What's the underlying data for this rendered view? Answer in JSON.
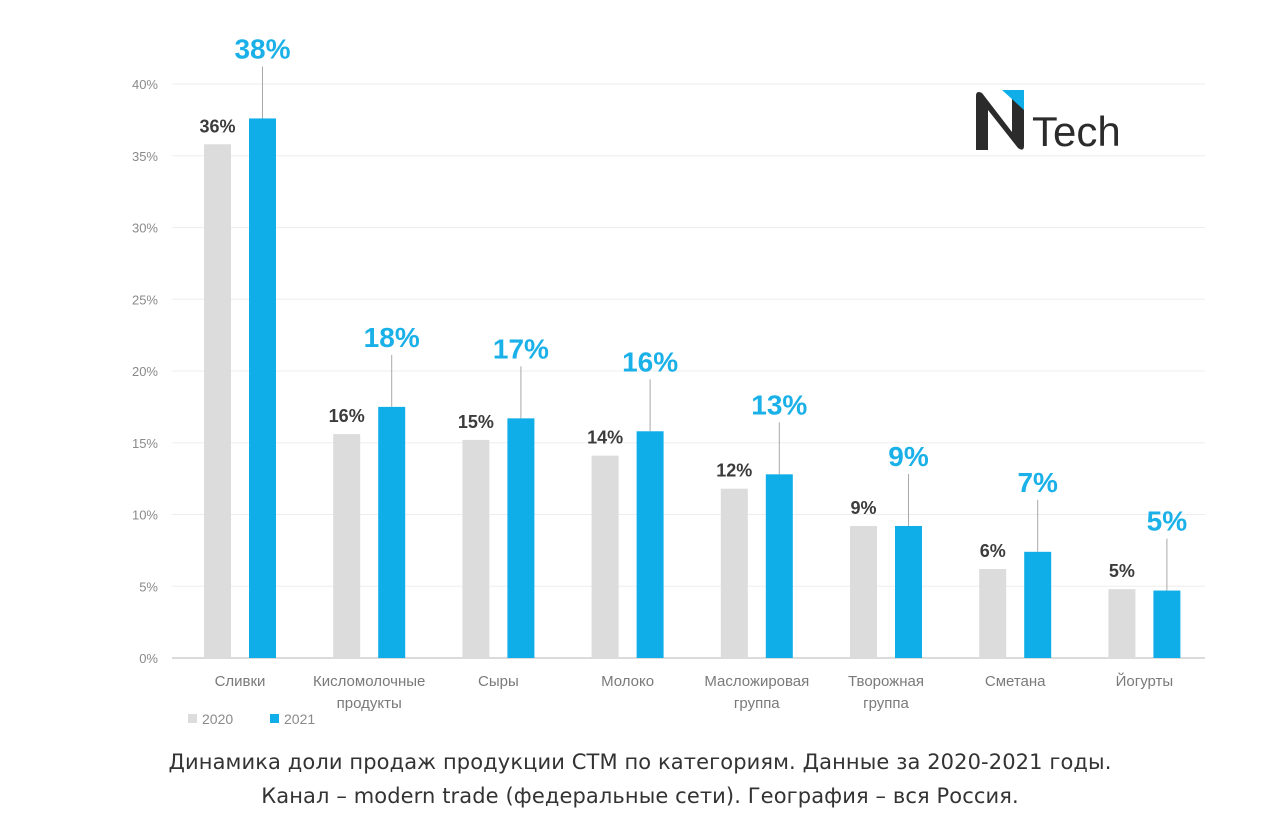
{
  "chart_data": {
    "type": "bar",
    "categories": [
      "Сливки",
      "Кисломолочные продукты",
      "Сыры",
      "Молоко",
      "Масложировая группа",
      "Творожная группа",
      "Сметана",
      "Йогурты"
    ],
    "category_lines": [
      [
        "Сливки"
      ],
      [
        "Кисломолочные",
        "продукты"
      ],
      [
        "Сыры"
      ],
      [
        "Молоко"
      ],
      [
        "Масложировая",
        "группа"
      ],
      [
        "Творожная",
        "группа"
      ],
      [
        "Сметана"
      ],
      [
        "Йогурты"
      ]
    ],
    "series": [
      {
        "name": "2020",
        "values": [
          35.8,
          15.6,
          15.2,
          14.1,
          11.8,
          9.2,
          6.2,
          4.8
        ],
        "labels": [
          "36%",
          "16%",
          "15%",
          "14%",
          "12%",
          "9%",
          "6%",
          "5%"
        ],
        "color": "#dcdcdc"
      },
      {
        "name": "2021",
        "values": [
          37.6,
          17.5,
          16.7,
          15.8,
          12.8,
          9.2,
          7.4,
          4.7
        ],
        "labels": [
          "38%",
          "18%",
          "17%",
          "16%",
          "13%",
          "9%",
          "7%",
          "5%"
        ],
        "color": "#10aee9"
      }
    ],
    "yticks": [
      "0%",
      "5%",
      "10%",
      "15%",
      "20%",
      "25%",
      "30%",
      "35%",
      "40%"
    ],
    "ylim": [
      0,
      40
    ],
    "grid": true,
    "legend_position": "bottom-left"
  },
  "logo": {
    "text": "Tech"
  },
  "caption": {
    "line1": "Динамика доли продаж продукции СТМ по категориям. Данные за 2020-2021 годы.",
    "line2": "Канал – modern trade (федеральные сети). География – вся Россия."
  },
  "colors": {
    "accent": "#10aee9",
    "label_2021": "#1ab0e8",
    "bar_2020": "#dcdcdc",
    "logo_dark": "#2b2b2b"
  }
}
